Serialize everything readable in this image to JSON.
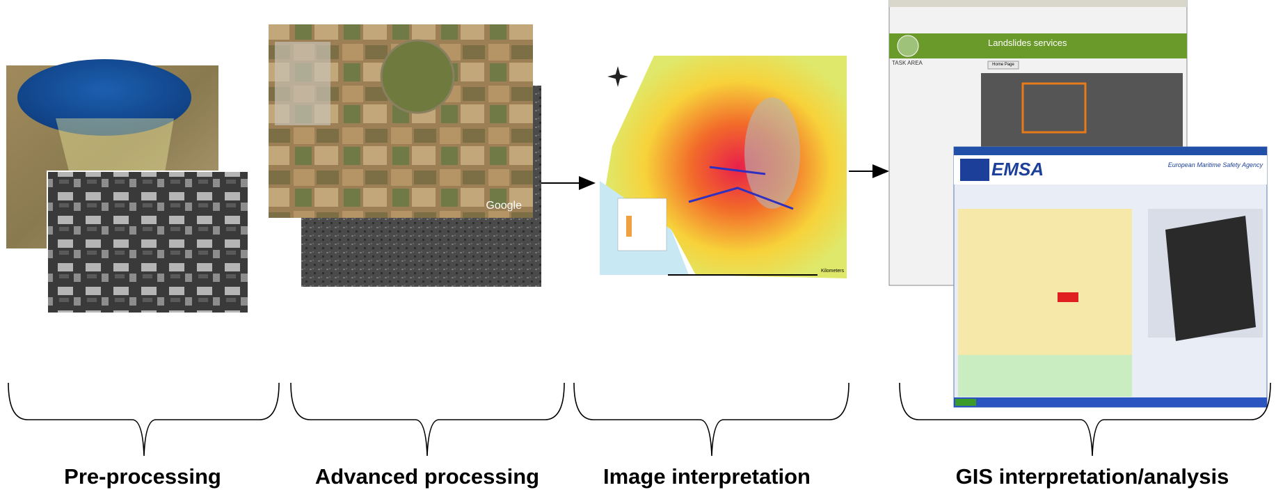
{
  "stages": [
    {
      "label": "Pre-processing"
    },
    {
      "label": "Advanced processing"
    },
    {
      "label": "Image interpretation"
    },
    {
      "label": "GIS interpretation/analysis"
    }
  ],
  "screens": {
    "google": "Google",
    "kilometers": "Kilometers",
    "landslides_title": "Landslides services",
    "task_area": "TASK AREA",
    "home_page": "Home Page",
    "emsa": "EMSA",
    "emsa_tagline": "European Maritime Safety Agency"
  }
}
